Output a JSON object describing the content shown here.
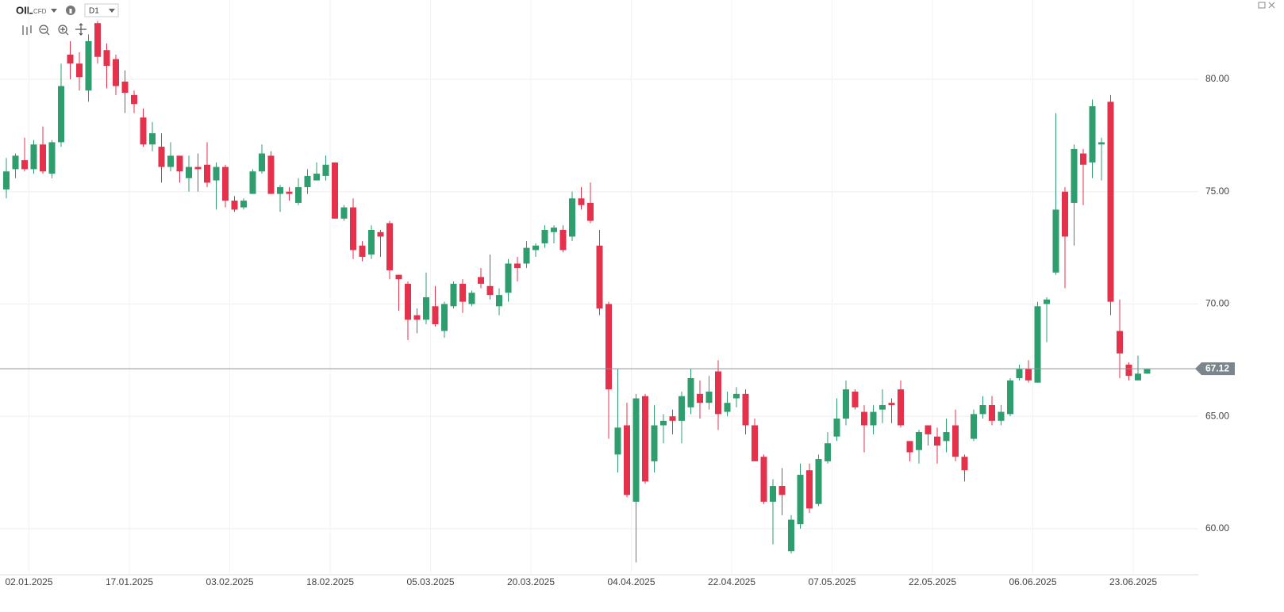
{
  "chart_data": {
    "type": "candlestick",
    "symbol": "OIL",
    "symbol_type": "CFD",
    "timeframe": "D1",
    "categories": [
      null,
      null,
      null,
      "02.01.2025",
      null,
      null,
      null,
      null,
      null,
      null,
      null,
      null,
      null,
      null,
      "17.01.2025",
      null,
      null,
      null,
      null,
      null,
      null,
      null,
      null,
      null,
      null,
      "03.02.2025",
      null,
      null,
      null,
      null,
      null,
      null,
      null,
      null,
      null,
      null,
      "18.02.2025",
      null,
      null,
      null,
      null,
      null,
      null,
      null,
      null,
      null,
      null,
      "05.03.2025",
      null,
      null,
      null,
      null,
      null,
      null,
      null,
      null,
      null,
      null,
      "20.03.2025",
      null,
      null,
      null,
      null,
      null,
      null,
      null,
      null,
      null,
      null,
      "04.04.2025",
      null,
      null,
      null,
      null,
      null,
      null,
      null,
      null,
      null,
      null,
      "22.04.2025",
      null,
      null,
      null,
      null,
      null,
      null,
      null,
      null,
      null,
      null,
      "07.05.2025",
      null,
      null,
      null,
      null,
      null,
      null,
      null,
      null,
      null,
      null,
      "22.05.2025",
      null,
      null,
      null,
      null,
      null,
      null,
      null,
      null,
      null,
      null,
      "06.06.2025",
      null,
      null,
      null,
      null,
      null,
      null,
      null,
      null,
      null,
      null,
      "23.06.2025",
      null
    ],
    "open": [
      75.1,
      76.0,
      76.4,
      76.0,
      77.1,
      75.8,
      77.2,
      81.1,
      80.7,
      79.5,
      82.5,
      81.3,
      80.9,
      79.9,
      79.3,
      78.3,
      77.1,
      77.0,
      76.1,
      76.6,
      75.6,
      76.1,
      76.2,
      75.5,
      76.1,
      74.6,
      74.3,
      74.9,
      75.9,
      76.6,
      74.9,
      75.0,
      74.5,
      75.2,
      75.5,
      75.7,
      76.3,
      73.8,
      74.3,
      72.6,
      72.2,
      73.2,
      73.6,
      71.3,
      70.9,
      69.5,
      69.3,
      69.9,
      68.8,
      69.9,
      70.9,
      70.0,
      71.2,
      70.8,
      69.9,
      70.5,
      71.8,
      71.8,
      72.4,
      72.7,
      73.2,
      73.3,
      73.0,
      74.7,
      74.5,
      72.6,
      70.0,
      63.3,
      64.6,
      61.2,
      65.9,
      63.0,
      64.6,
      65.0,
      64.8,
      65.4,
      66.0,
      65.6,
      67.0,
      65.2,
      65.8,
      66.0,
      64.6,
      63.2,
      61.2,
      61.9,
      59.0,
      60.2,
      62.6,
      61.1,
      63.0,
      64.1,
      64.9,
      66.1,
      65.2,
      64.6,
      65.3,
      65.6,
      66.2,
      63.9,
      63.5,
      64.6,
      64.1,
      63.9,
      64.6,
      63.2,
      64.0,
      65.1,
      65.5,
      64.8,
      65.1,
      66.7,
      67.1,
      66.5,
      70.0,
      71.4,
      75.0,
      74.5,
      76.7,
      76.3,
      77.1,
      79.0,
      68.8,
      67.3,
      66.6,
      66.9
    ],
    "high": [
      76.5,
      76.7,
      77.4,
      77.3,
      77.9,
      77.3,
      80.7,
      81.7,
      81.2,
      82.0,
      82.6,
      81.6,
      81.1,
      80.4,
      79.5,
      78.7,
      78.1,
      77.6,
      77.2,
      76.6,
      76.6,
      76.7,
      77.2,
      76.3,
      76.2,
      74.8,
      74.7,
      76.0,
      77.1,
      76.8,
      75.3,
      75.2,
      75.6,
      76.0,
      76.3,
      76.6,
      76.3,
      74.4,
      74.7,
      72.8,
      73.5,
      73.3,
      73.7,
      71.3,
      71.0,
      69.8,
      71.4,
      70.8,
      70.1,
      71.0,
      71.1,
      70.6,
      71.6,
      72.2,
      70.7,
      72.0,
      72.1,
      72.8,
      72.7,
      73.5,
      73.5,
      73.5,
      75.0,
      75.2,
      75.4,
      73.3,
      70.1,
      67.1,
      65.6,
      66.0,
      66.0,
      65.5,
      65.1,
      65.3,
      66.1,
      67.1,
      66.6,
      66.8,
      67.5,
      66.1,
      66.3,
      66.2,
      64.9,
      63.3,
      62.2,
      62.7,
      60.6,
      62.9,
      62.9,
      63.3,
      64.3,
      65.8,
      66.6,
      66.2,
      65.5,
      65.5,
      66.2,
      65.8,
      66.6,
      63.9,
      64.4,
      64.6,
      64.5,
      64.9,
      65.3,
      63.3,
      65.3,
      65.9,
      65.9,
      65.5,
      66.7,
      67.3,
      67.5,
      70.1,
      70.3,
      78.5,
      75.2,
      77.1,
      76.9,
      79.1,
      77.4,
      79.3,
      70.2,
      67.4,
      67.7,
      67.1
    ],
    "low": [
      74.7,
      75.6,
      75.9,
      75.8,
      75.8,
      75.6,
      77.0,
      80.0,
      79.5,
      79.0,
      80.7,
      79.6,
      79.3,
      78.5,
      78.5,
      77.0,
      76.8,
      75.4,
      75.9,
      75.4,
      75.0,
      75.0,
      75.2,
      74.2,
      74.3,
      74.1,
      74.2,
      74.9,
      75.8,
      74.9,
      74.1,
      74.6,
      74.4,
      74.9,
      75.5,
      75.5,
      73.8,
      73.7,
      72.0,
      71.9,
      72.0,
      72.1,
      71.1,
      69.7,
      68.4,
      68.7,
      69.1,
      69.0,
      68.5,
      69.8,
      69.6,
      69.9,
      70.7,
      70.2,
      69.5,
      70.1,
      71.0,
      71.6,
      72.1,
      72.5,
      72.7,
      72.3,
      72.8,
      74.2,
      73.6,
      69.5,
      64.0,
      62.5,
      61.4,
      58.5,
      62.0,
      62.5,
      63.8,
      64.2,
      63.8,
      65.1,
      64.9,
      65.3,
      64.4,
      65.0,
      65.4,
      64.2,
      63.0,
      61.1,
      59.3,
      60.6,
      58.9,
      60.0,
      60.7,
      61.0,
      62.9,
      63.9,
      64.6,
      65.3,
      63.4,
      64.2,
      64.7,
      64.7,
      64.5,
      63.0,
      62.9,
      63.7,
      62.9,
      63.4,
      63.0,
      62.1,
      63.9,
      64.9,
      64.6,
      64.6,
      65.0,
      66.6,
      66.5,
      66.5,
      68.3,
      71.3,
      70.7,
      72.6,
      74.4,
      75.6,
      75.5,
      69.5,
      66.7,
      66.6,
      66.6,
      66.9
    ],
    "close": [
      75.9,
      76.6,
      76.0,
      77.1,
      75.9,
      77.2,
      79.7,
      80.7,
      80.1,
      81.7,
      81.0,
      80.6,
      79.7,
      79.4,
      78.9,
      77.1,
      77.6,
      76.1,
      76.6,
      75.9,
      76.1,
      76.0,
      75.4,
      76.1,
      74.6,
      74.2,
      74.6,
      75.9,
      76.7,
      74.9,
      75.2,
      74.9,
      75.2,
      75.7,
      75.8,
      76.2,
      73.8,
      74.3,
      72.4,
      72.1,
      73.3,
      73.0,
      71.5,
      71.1,
      69.3,
      69.3,
      70.3,
      69.1,
      70.0,
      70.9,
      70.1,
      70.5,
      70.9,
      70.4,
      70.4,
      71.8,
      71.6,
      72.5,
      72.6,
      73.3,
      73.4,
      72.4,
      74.7,
      74.4,
      73.7,
      69.8,
      66.2,
      64.5,
      61.5,
      65.8,
      62.1,
      64.6,
      64.8,
      64.8,
      65.9,
      66.7,
      65.6,
      66.1,
      65.1,
      65.6,
      66.0,
      64.6,
      63.0,
      61.2,
      61.9,
      61.5,
      60.4,
      62.4,
      60.9,
      63.1,
      63.8,
      64.9,
      66.2,
      65.4,
      64.6,
      65.2,
      65.5,
      65.5,
      64.6,
      63.4,
      64.3,
      64.2,
      63.7,
      64.3,
      63.2,
      62.6,
      65.1,
      65.5,
      64.8,
      65.2,
      66.6,
      67.1,
      66.6,
      69.9,
      70.2,
      74.2,
      73.0,
      76.9,
      76.2,
      78.8,
      77.2,
      70.1,
      67.8,
      66.8,
      66.9,
      67.1
    ],
    "up_color": "#2f9e6e",
    "down_color": "#e5324c",
    "last_price": 67.12,
    "ylim": [
      57.95,
      83.53
    ],
    "yticks": [
      {
        "value": 60,
        "label": "60.00"
      },
      {
        "value": 65,
        "label": "65.00"
      },
      {
        "value": 70,
        "label": "70.00"
      },
      {
        "value": 75,
        "label": "75.00"
      },
      {
        "value": 80,
        "label": "80.00"
      }
    ],
    "grid": true
  }
}
